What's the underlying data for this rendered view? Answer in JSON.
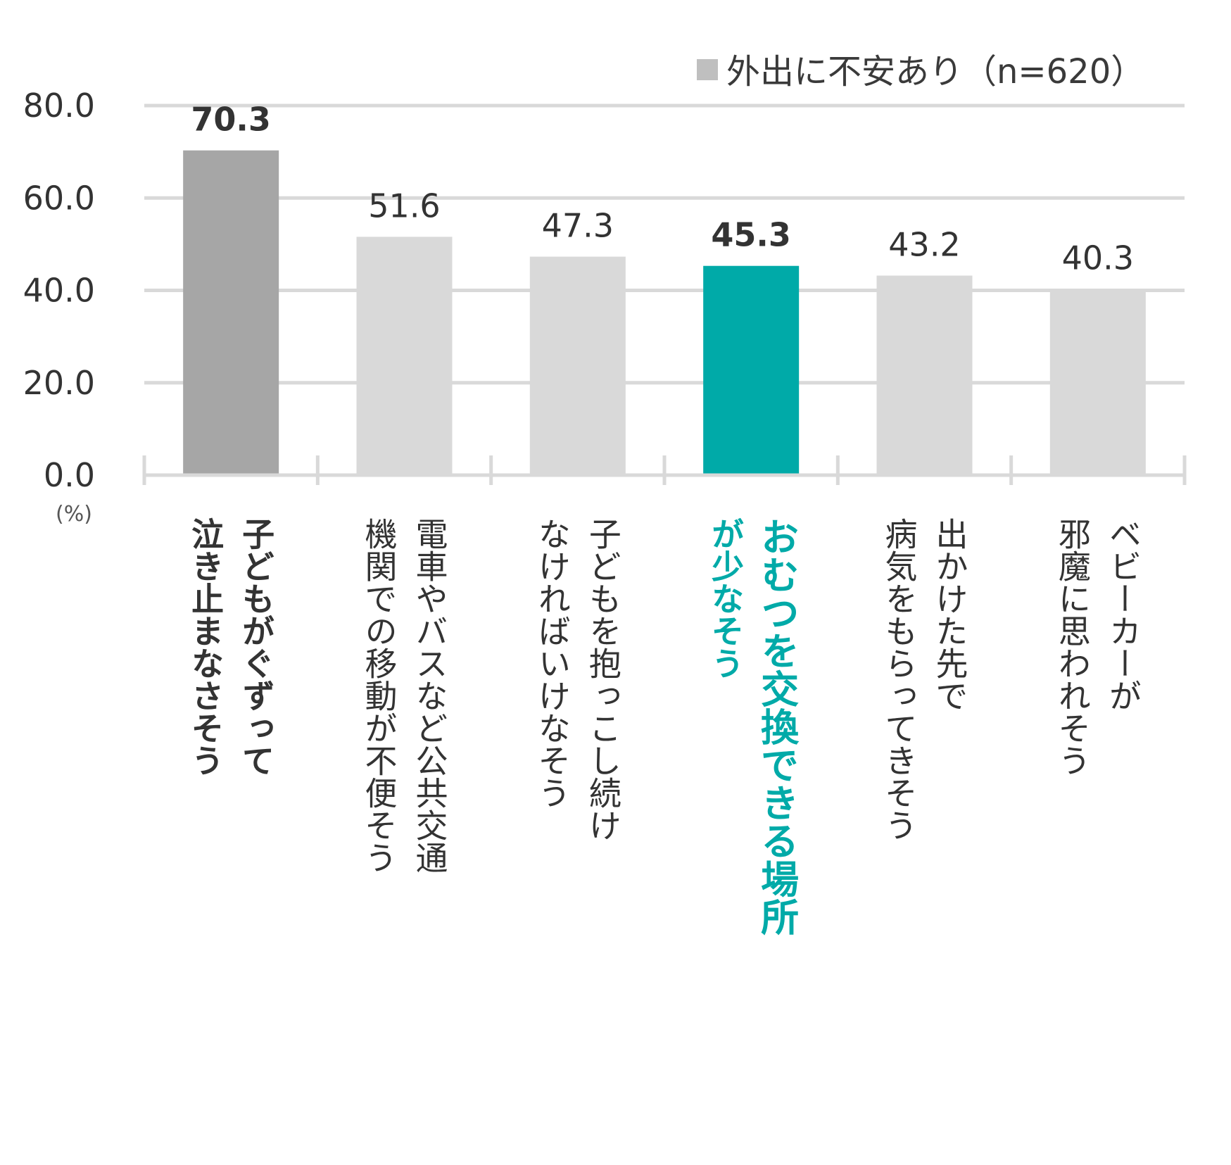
{
  "chart_data": {
    "type": "bar",
    "legend": {
      "label": "外出に不安あり（n=620）",
      "color": "#bfbfbf",
      "position": "top-right"
    },
    "unit_label": "(%)",
    "ylim": [
      0,
      80
    ],
    "yticks": [
      "0.0",
      "20.0",
      "40.0",
      "60.0",
      "80.0"
    ],
    "grid": true,
    "categories": [
      "子どもがぐずって泣き止まなさそう",
      "電車やバスなど公共交通機関での移動が不便そう",
      "子どもを抱っこし続けなければいけなそう",
      "おむつを交換できる場所が少なそう",
      "出かけた先で病気をもらってきそう",
      "ベビーカーが邪魔に思われそう"
    ],
    "category_lines": [
      [
        "子どもがぐずって",
        "泣き止まなさそう"
      ],
      [
        "電車やバスなど公共交通",
        "機関での移動が不便そう"
      ],
      [
        "子どもを抱っこし続け",
        "なければいけなそう"
      ],
      [
        "おむつを交換できる場所",
        "が少なそう"
      ],
      [
        "出かけた先で",
        "病気をもらってきそう"
      ],
      [
        "ベビーカーが",
        "邪魔に思われそう"
      ]
    ],
    "values": [
      70.3,
      51.6,
      47.3,
      45.3,
      43.2,
      40.3
    ],
    "value_labels": [
      "70.3",
      "51.6",
      "47.3",
      "45.3",
      "43.2",
      "40.3"
    ],
    "bar_colors": [
      "#a6a6a6",
      "#d9d9d9",
      "#d9d9d9",
      "#00aaa8",
      "#d9d9d9",
      "#d9d9d9"
    ],
    "label_colors": [
      "#333333",
      "#333333",
      "#333333",
      "#00aaa8",
      "#333333",
      "#333333"
    ],
    "emphasis": [
      "bold",
      "normal",
      "normal",
      "bold",
      "normal",
      "normal"
    ],
    "gridline_color": "#d9d9d9"
  }
}
